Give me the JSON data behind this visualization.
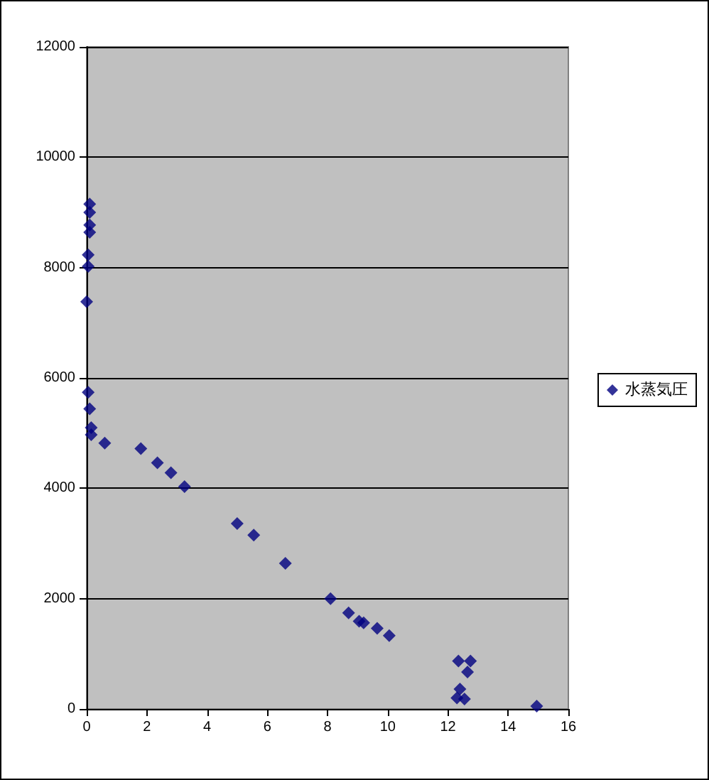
{
  "chart_data": {
    "type": "scatter",
    "xlim": [
      0,
      16
    ],
    "xticks": [
      0,
      2,
      4,
      6,
      8,
      10,
      12,
      14,
      16
    ],
    "ylim": [
      0,
      12000
    ],
    "yticks": [
      0,
      2000,
      4000,
      6000,
      8000,
      10000,
      12000
    ],
    "grid": "y",
    "legend": "right",
    "marker": "diamond",
    "series": [
      {
        "name": "水蒸気圧",
        "color": "#000080",
        "x": [
          0.1,
          0.1,
          0.1,
          0.1,
          0.05,
          0.05,
          0.0,
          0.05,
          0.1,
          0.15,
          0.15,
          0.6,
          1.7,
          1.8,
          2.35,
          2.8,
          3.25,
          5.0,
          5.55,
          6.6,
          8.1,
          8.7,
          9.05,
          9.2,
          9.65,
          10.05,
          12.35,
          12.75,
          12.65,
          12.4,
          12.3,
          12.55,
          14.95
        ],
        "values": [
          9150,
          9000,
          8770,
          8640,
          8230,
          8020,
          7380,
          5740,
          5440,
          5100,
          4970,
          4820,
          null,
          4720,
          4460,
          4280,
          4030,
          3360,
          3150,
          2640,
          2000,
          1740,
          1590,
          1560,
          1460,
          1330,
          870,
          870,
          670,
          360,
          200,
          180,
          50
        ]
      }
    ]
  }
}
